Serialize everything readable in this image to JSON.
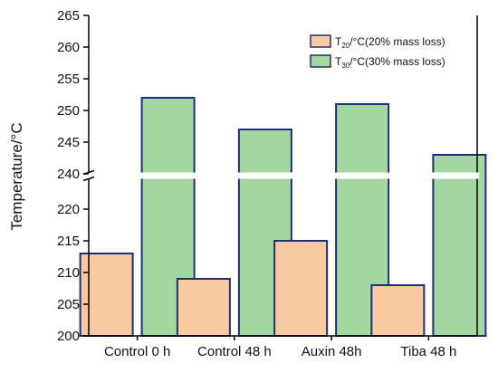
{
  "chart_data": {
    "type": "bar",
    "ylabel": "Temperature/°C",
    "categories": [
      "Control 0 h",
      "Control 48 h",
      "Auxin 48h",
      "Tiba 48 h"
    ],
    "series": [
      {
        "name_main": "T",
        "name_sub": "20",
        "name_rest": "/°C(20% mass loss)",
        "color": "#f9c9a0",
        "values": [
          213,
          209,
          215,
          208
        ]
      },
      {
        "name_main": "T",
        "name_sub": "30",
        "name_rest": "/°C(30% mass loss)",
        "color": "#a3d7a0",
        "values": [
          252,
          247,
          251,
          243
        ]
      }
    ],
    "axis_break": true,
    "y_segments": [
      {
        "range": [
          200,
          224
        ],
        "ticks": [
          "200",
          "205",
          "210",
          "215",
          "220"
        ]
      },
      {
        "range": [
          239,
          265
        ],
        "ticks": [
          "240",
          "245",
          "250",
          "255",
          "260",
          "265"
        ]
      }
    ],
    "bar_edge_color": "#1f2d7a",
    "legend_position": "top-right",
    "grid": false
  }
}
